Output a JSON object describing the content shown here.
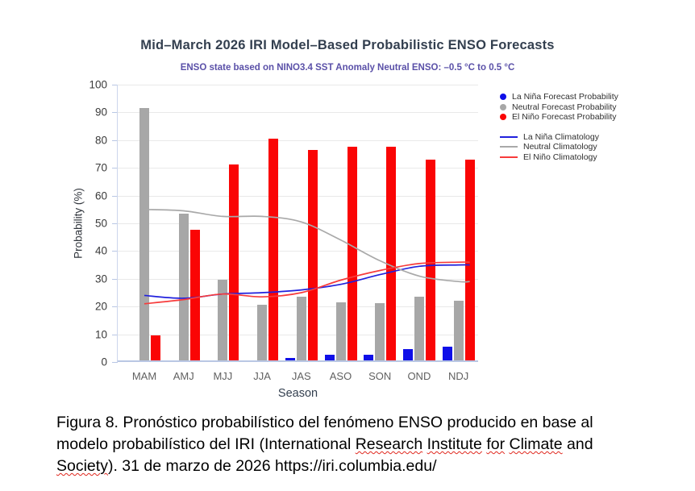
{
  "header": {
    "title": "Mid–March 2026 IRI Model–Based Probabilistic ENSO Forecasts",
    "subtitle": "ENSO state based on NINO3.4 SST Anomaly Neutral ENSO: –0.5 °C to 0.5 °C"
  },
  "colors": {
    "title": "#333f4f",
    "subtitle": "#5a50a8",
    "gridline": "#e9e9e9",
    "axis_line": "#b9c7e4",
    "tick_label": "#3a3a3a",
    "season_label": "#616161",
    "caption_text": "#000000",
    "spellcheck_underline": "#e0281e"
  },
  "chart_data": {
    "type": "bar",
    "title": "Mid–March 2026 IRI Model–Based Probabilistic ENSO Forecasts",
    "subtitle": "ENSO state based on NINO3.4 SST Anomaly Neutral ENSO: –0.5 °C to 0.5 °C",
    "xlabel": "Season",
    "ylabel": "Probability (%)",
    "ylim": [
      0,
      100
    ],
    "ytick_step": 10,
    "grid": true,
    "legend_position": "right-top",
    "categories": [
      "MAM",
      "AMJ",
      "MJJ",
      "JJA",
      "JAS",
      "ASO",
      "SON",
      "OND",
      "NDJ"
    ],
    "bar_series": [
      {
        "key": "la-nina-forecast",
        "name": "La Niña Forecast Probability",
        "color": "#0f0fe8",
        "values": [
          0,
          0,
          0,
          0,
          1,
          2,
          2,
          4,
          5
        ]
      },
      {
        "key": "neutral-forecast",
        "name": "Neutral Forecast Probability",
        "color": "#a7a7a7",
        "values": [
          91,
          53,
          29,
          20,
          23,
          21,
          20.5,
          23,
          21.5
        ]
      },
      {
        "key": "el-nino-forecast",
        "name": "El Niño Forecast Probability",
        "color": "#fa0505",
        "values": [
          9,
          47,
          70.5,
          80,
          76,
          77,
          77,
          72.5,
          72.5
        ]
      }
    ],
    "line_series": [
      {
        "key": "la-nina-climatology",
        "name": "La Niña Climatology",
        "color": "#2020dd",
        "values": [
          24,
          23,
          24.5,
          25,
          26,
          28,
          31.5,
          34.5,
          35
        ]
      },
      {
        "key": "neutral-climatology",
        "name": "Neutral Climatology",
        "color": "#a9a9a9",
        "values": [
          55,
          54.5,
          52.5,
          52.5,
          50.5,
          44,
          36.5,
          31,
          29
        ]
      },
      {
        "key": "el-nino-climatology",
        "name": "El Niño Climatology",
        "color": "#f73b3b",
        "values": [
          21,
          22.5,
          24.5,
          23.5,
          25,
          29.5,
          33,
          35.5,
          36
        ]
      }
    ]
  },
  "caption": {
    "lines": [
      {
        "segments": [
          {
            "t": "Figura 8. Pronóstico probabilístico del fenómeno ENSO producido en base al",
            "m": false
          }
        ]
      },
      {
        "segments": [
          {
            "t": "modelo probabilístico del IRI (International ",
            "m": false
          },
          {
            "t": "Research",
            "m": true
          },
          {
            "t": " ",
            "m": false
          },
          {
            "t": "Institute",
            "m": true
          },
          {
            "t": " ",
            "m": false
          },
          {
            "t": "for",
            "m": true
          },
          {
            "t": " ",
            "m": false
          },
          {
            "t": "Climate",
            "m": true
          },
          {
            "t": " and",
            "m": false
          }
        ]
      },
      {
        "segments": [
          {
            "t": "Society",
            "m": true
          },
          {
            "t": "). 31 de marzo de 2026 ",
            "m": false
          },
          {
            "t": "https://iri.columbia.edu/",
            "m": false,
            "url": true
          }
        ]
      }
    ]
  }
}
